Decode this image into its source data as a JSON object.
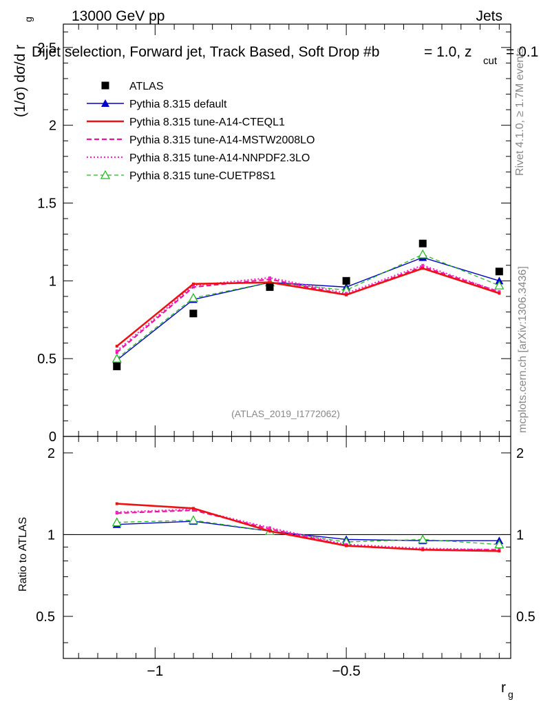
{
  "header": {
    "left": "13000 GeV pp",
    "right": "Jets",
    "title": "Dijet selection, Forward jet, Track Based, Soft Drop #b",
    "title_tail": "= 1.0, z",
    "title_sub": "cut",
    "title_end": "= 0.1"
  },
  "side": {
    "rivet": "Rivet 4.1.0, ≥ 1.7M events",
    "mcplots": "mcplots.cern.ch [arXiv:1306.3436]"
  },
  "watermark": "(ATLAS_2019_I1772062)",
  "colors": {
    "atlas": "#000000",
    "default": "#0000cc",
    "cteql1": "#ee1111",
    "mstw": "#ee1199",
    "nnpdf": "#ff22cc",
    "cuetp8s1": "#22bb22"
  },
  "chart_data": [
    {
      "type": "line",
      "panel": "main",
      "ylabel_main": "(1/σ) dσ/d r",
      "ylabel_sub": "g",
      "xlabel": "r",
      "xlabel_sub": "g",
      "xlim": [
        -1.24,
        -0.07
      ],
      "ylim": [
        0,
        2.65
      ],
      "xticks": [
        -1,
        -0.5
      ],
      "xtick_labels": [
        "−1",
        "−0.5"
      ],
      "yticks": [
        0,
        0.5,
        1,
        1.5,
        2,
        2.5
      ],
      "ytick_labels": [
        "0",
        "0.5",
        "1",
        "1.5",
        "2",
        "2.5"
      ],
      "x": [
        -1.1,
        -0.9,
        -0.7,
        -0.5,
        -0.3,
        -0.1
      ],
      "series": [
        {
          "name": "ATLAS",
          "key": "atlas",
          "style": "points",
          "values": [
            0.45,
            0.79,
            0.96,
            1.0,
            1.24,
            1.06
          ]
        },
        {
          "name": "Pythia 8.315 default",
          "key": "default",
          "style": "solid-triangle",
          "values": [
            0.49,
            0.88,
            0.99,
            0.96,
            1.15,
            1.0
          ]
        },
        {
          "name": "Pythia 8.315 tune-A14-CTEQL1",
          "key": "cteql1",
          "style": "solid-thick",
          "values": [
            0.58,
            0.98,
            0.99,
            0.91,
            1.08,
            0.92
          ]
        },
        {
          "name": "Pythia 8.315 tune-A14-MSTW2008LO",
          "key": "mstw",
          "style": "dashed",
          "values": [
            0.54,
            0.96,
            1.01,
            0.91,
            1.09,
            0.93
          ]
        },
        {
          "name": "Pythia 8.315 tune-A14-NNPDF2.3LO",
          "key": "nnpdf",
          "style": "dotted",
          "values": [
            0.55,
            0.97,
            1.02,
            0.92,
            1.1,
            0.93
          ]
        },
        {
          "name": "Pythia 8.315 tune-CUETP8S1",
          "key": "cuetp8s1",
          "style": "dashed-open-triangle",
          "values": [
            0.5,
            0.89,
            0.99,
            0.94,
            1.17,
            0.97
          ]
        }
      ]
    },
    {
      "type": "line",
      "panel": "ratio",
      "ylabel": "Ratio to ATLAS",
      "ylim": [
        0.35,
        2.3
      ],
      "yticks": [
        0.5,
        1,
        2
      ],
      "ytick_labels": [
        "0.5",
        "1",
        "2"
      ],
      "reference": 1,
      "x": [
        -1.1,
        -0.9,
        -0.7,
        -0.5,
        -0.3,
        -0.1
      ],
      "series": [
        {
          "name": "Pythia 8.315 default",
          "key": "default",
          "values": [
            1.09,
            1.12,
            1.03,
            0.96,
            0.95,
            0.95
          ]
        },
        {
          "name": "Pythia 8.315 tune-A14-CTEQL1",
          "key": "cteql1",
          "values": [
            1.3,
            1.25,
            1.03,
            0.91,
            0.88,
            0.87
          ]
        },
        {
          "name": "Pythia 8.315 tune-A14-MSTW2008LO",
          "key": "mstw",
          "values": [
            1.2,
            1.23,
            1.05,
            0.91,
            0.88,
            0.88
          ]
        },
        {
          "name": "Pythia 8.315 tune-A14-NNPDF2.3LO",
          "key": "nnpdf",
          "values": [
            1.21,
            1.24,
            1.06,
            0.92,
            0.89,
            0.88
          ]
        },
        {
          "name": "Pythia 8.315 tune-CUETP8S1",
          "key": "cuetp8s1",
          "values": [
            1.11,
            1.13,
            1.03,
            0.94,
            0.96,
            0.92
          ]
        }
      ]
    }
  ]
}
